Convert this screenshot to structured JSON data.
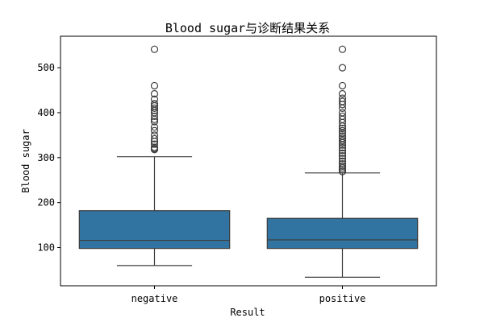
{
  "chart_data": {
    "type": "box",
    "title": "Blood sugar与诊断结果关系",
    "xlabel": "Result",
    "ylabel": "Blood sugar",
    "categories": [
      "negative",
      "positive"
    ],
    "ylim": [
      15,
      570
    ],
    "yticks": [
      100,
      200,
      300,
      400,
      500
    ],
    "grid": false,
    "box_color": "#3274a1",
    "line_color": "#3d3d3d",
    "boxes": [
      {
        "name": "negative",
        "whisker_low": 60,
        "q1": 98,
        "median": 116,
        "q3": 182,
        "whisker_high": 302,
        "outliers": [
          541,
          460,
          442,
          430,
          420,
          415,
          410,
          405,
          400,
          392,
          385,
          380,
          368,
          360,
          350,
          342,
          336,
          330,
          323,
          320,
          318
        ]
      },
      {
        "name": "positive",
        "whisker_low": 34,
        "q1": 98,
        "median": 117,
        "q3": 165,
        "whisker_high": 266,
        "outliers": [
          541,
          500,
          460,
          442,
          432,
          425,
          418,
          410,
          400,
          392,
          385,
          378,
          370,
          365,
          360,
          354,
          348,
          343,
          338,
          333,
          328,
          322,
          316,
          310,
          304,
          298,
          292,
          286,
          281,
          277,
          273,
          269
        ]
      }
    ]
  }
}
